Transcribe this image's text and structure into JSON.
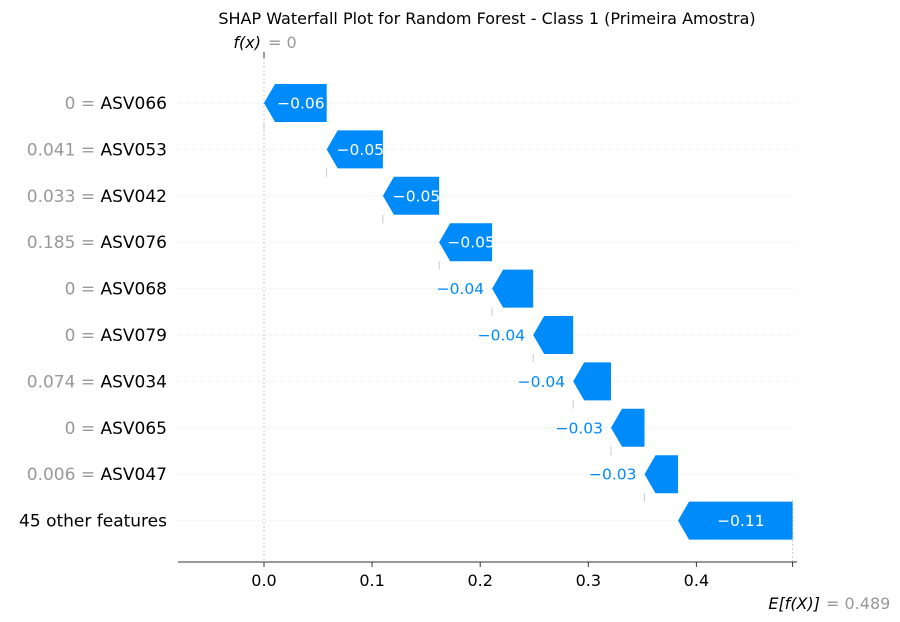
{
  "chart_data": {
    "type": "waterfall",
    "title": "SHAP Waterfall Plot for Random Forest - Class 1 (Primeira Amostra)",
    "fx_label": "f(x)",
    "fx_value": "0",
    "base_label": "E[f(X)]",
    "base_value": "0.489",
    "xlim": [
      -0.08,
      0.49
    ],
    "xticks": [
      {
        "value": 0.0,
        "label": "0.0"
      },
      {
        "value": 0.1,
        "label": "0.1"
      },
      {
        "value": 0.2,
        "label": "0.2"
      },
      {
        "value": 0.3,
        "label": "0.3"
      },
      {
        "value": 0.4,
        "label": "0.4"
      }
    ],
    "grid": "dotted horizontal row guides",
    "colors": {
      "negative": "#008bfb",
      "muted": "#999999"
    },
    "features": [
      {
        "value": "0",
        "name": "ASV066",
        "shap": -0.06,
        "label": "−0.06"
      },
      {
        "value": "0.041",
        "name": "ASV053",
        "shap": -0.05,
        "label": "−0.05"
      },
      {
        "value": "0.033",
        "name": "ASV042",
        "shap": -0.05,
        "label": "−0.05"
      },
      {
        "value": "0.185",
        "name": "ASV076",
        "shap": -0.05,
        "label": "−0.05"
      },
      {
        "value": "0",
        "name": "ASV068",
        "shap": -0.04,
        "label": "−0.04"
      },
      {
        "value": "0",
        "name": "ASV079",
        "shap": -0.04,
        "label": "−0.04"
      },
      {
        "value": "0.074",
        "name": "ASV034",
        "shap": -0.04,
        "label": "−0.04"
      },
      {
        "value": "0",
        "name": "ASV065",
        "shap": -0.03,
        "label": "−0.03"
      },
      {
        "value": "0.006",
        "name": "ASV047",
        "shap": -0.03,
        "label": "−0.03"
      },
      {
        "value": "",
        "name": "45 other features",
        "shap": -0.11,
        "label": "−0.11"
      }
    ],
    "cumulative_starts": [
      0.0,
      0.058,
      0.11,
      0.162,
      0.211,
      0.249,
      0.286,
      0.321,
      0.352,
      0.383,
      0.489
    ]
  }
}
